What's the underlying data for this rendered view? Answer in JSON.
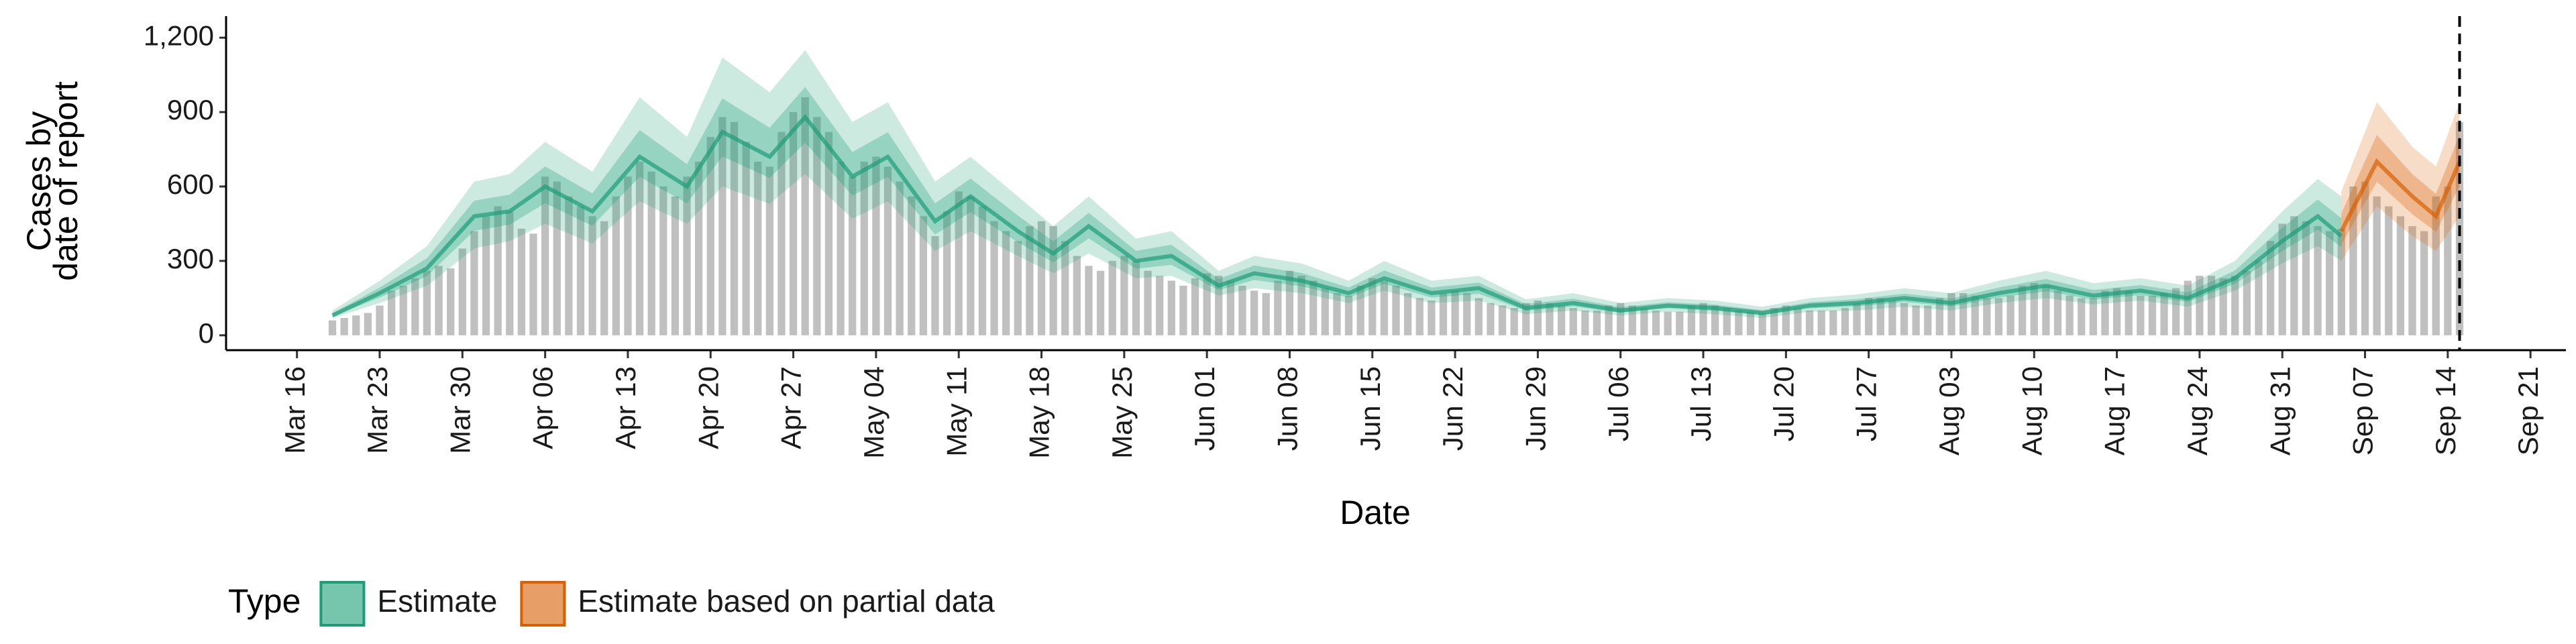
{
  "chart_data": {
    "type": "bar-ribbon",
    "y_label": [
      "Cases by",
      "date of report"
    ],
    "x_label": "Date",
    "legend_title": "Type",
    "legend_position": "bottom",
    "xlim": [
      "Mar 10",
      "Sep 24"
    ],
    "xticks": [
      "Mar 16",
      "Mar 23",
      "Mar 30",
      "Apr 06",
      "Apr 13",
      "Apr 20",
      "Apr 27",
      "May 04",
      "May 11",
      "May 18",
      "May 25",
      "Jun 01",
      "Jun 08",
      "Jun 15",
      "Jun 22",
      "Jun 29",
      "Jul 06",
      "Jul 13",
      "Jul 20",
      "Jul 27",
      "Aug 03",
      "Aug 10",
      "Aug 17",
      "Aug 24",
      "Aug 31",
      "Sep 07",
      "Sep 14",
      "Sep 21"
    ],
    "ylim": [
      -60,
      1260
    ],
    "yticks": [
      0,
      300,
      600,
      900,
      {
        "value": 1200,
        "label": "1,200"
      }
    ],
    "vline": "Sep 15",
    "bar_color": "#b5b5b5",
    "x": [
      "Mar 19",
      "Mar 20",
      "Mar 21",
      "Mar 22",
      "Mar 23",
      "Mar 24",
      "Mar 25",
      "Mar 26",
      "Mar 27",
      "Mar 28",
      "Mar 29",
      "Mar 30",
      "Mar 31",
      "Apr 01",
      "Apr 02",
      "Apr 03",
      "Apr 04",
      "Apr 05",
      "Apr 06",
      "Apr 07",
      "Apr 08",
      "Apr 09",
      "Apr 10",
      "Apr 11",
      "Apr 12",
      "Apr 13",
      "Apr 14",
      "Apr 15",
      "Apr 16",
      "Apr 17",
      "Apr 18",
      "Apr 19",
      "Apr 20",
      "Apr 21",
      "Apr 22",
      "Apr 23",
      "Apr 24",
      "Apr 25",
      "Apr 26",
      "Apr 27",
      "Apr 28",
      "Apr 29",
      "Apr 30",
      "May 01",
      "May 02",
      "May 03",
      "May 04",
      "May 05",
      "May 06",
      "May 07",
      "May 08",
      "May 09",
      "May 10",
      "May 11",
      "May 12",
      "May 13",
      "May 14",
      "May 15",
      "May 16",
      "May 17",
      "May 18",
      "May 19",
      "May 20",
      "May 21",
      "May 22",
      "May 23",
      "May 24",
      "May 25",
      "May 26",
      "May 27",
      "May 28",
      "May 29",
      "May 30",
      "May 31",
      "Jun 01",
      "Jun 02",
      "Jun 03",
      "Jun 04",
      "Jun 05",
      "Jun 06",
      "Jun 07",
      "Jun 08",
      "Jun 09",
      "Jun 10",
      "Jun 11",
      "Jun 12",
      "Jun 13",
      "Jun 14",
      "Jun 15",
      "Jun 16",
      "Jun 17",
      "Jun 18",
      "Jun 19",
      "Jun 20",
      "Jun 21",
      "Jun 22",
      "Jun 23",
      "Jun 24",
      "Jun 25",
      "Jun 26",
      "Jun 27",
      "Jun 28",
      "Jun 29",
      "Jun 30",
      "Jul 01",
      "Jul 02",
      "Jul 03",
      "Jul 04",
      "Jul 05",
      "Jul 06",
      "Jul 07",
      "Jul 08",
      "Jul 09",
      "Jul 10",
      "Jul 11",
      "Jul 12",
      "Jul 13",
      "Jul 14",
      "Jul 15",
      "Jul 16",
      "Jul 17",
      "Jul 18",
      "Jul 19",
      "Jul 20",
      "Jul 21",
      "Jul 22",
      "Jul 23",
      "Jul 24",
      "Jul 25",
      "Jul 26",
      "Jul 27",
      "Jul 28",
      "Jul 29",
      "Jul 30",
      "Jul 31",
      "Aug 01",
      "Aug 02",
      "Aug 03",
      "Aug 04",
      "Aug 05",
      "Aug 06",
      "Aug 07",
      "Aug 08",
      "Aug 09",
      "Aug 10",
      "Aug 11",
      "Aug 12",
      "Aug 13",
      "Aug 14",
      "Aug 15",
      "Aug 16",
      "Aug 17",
      "Aug 18",
      "Aug 19",
      "Aug 20",
      "Aug 21",
      "Aug 22",
      "Aug 23",
      "Aug 24",
      "Aug 25",
      "Aug 26",
      "Aug 27",
      "Aug 28",
      "Aug 29",
      "Aug 30",
      "Aug 31",
      "Sep 01",
      "Sep 02",
      "Sep 03",
      "Sep 04",
      "Sep 05",
      "Sep 06",
      "Sep 07",
      "Sep 08",
      "Sep 09",
      "Sep 10",
      "Sep 11",
      "Sep 12",
      "Sep 13",
      "Sep 14",
      "Sep 15"
    ],
    "values": [
      60,
      70,
      80,
      90,
      120,
      180,
      200,
      230,
      260,
      280,
      270,
      350,
      420,
      480,
      520,
      500,
      430,
      410,
      640,
      620,
      560,
      520,
      480,
      460,
      560,
      640,
      700,
      660,
      600,
      560,
      640,
      700,
      800,
      880,
      860,
      780,
      700,
      680,
      820,
      900,
      960,
      880,
      820,
      700,
      640,
      700,
      720,
      680,
      620,
      560,
      480,
      400,
      500,
      580,
      560,
      520,
      460,
      420,
      380,
      440,
      460,
      440,
      380,
      320,
      280,
      260,
      300,
      320,
      300,
      260,
      240,
      220,
      200,
      230,
      250,
      240,
      220,
      200,
      180,
      170,
      220,
      260,
      240,
      220,
      190,
      170,
      160,
      200,
      230,
      220,
      200,
      170,
      150,
      140,
      170,
      180,
      170,
      150,
      130,
      120,
      110,
      130,
      140,
      130,
      120,
      110,
      100,
      100,
      120,
      130,
      120,
      110,
      100,
      95,
      95,
      120,
      130,
      120,
      110,
      100,
      95,
      90,
      110,
      120,
      110,
      100,
      100,
      100,
      110,
      130,
      150,
      150,
      140,
      130,
      120,
      120,
      150,
      170,
      170,
      160,
      150,
      150,
      160,
      200,
      210,
      200,
      180,
      160,
      150,
      150,
      180,
      190,
      180,
      160,
      160,
      170,
      190,
      220,
      240,
      240,
      230,
      240,
      260,
      300,
      380,
      450,
      480,
      460,
      440,
      420,
      430,
      600,
      620,
      560,
      520,
      480,
      440,
      420,
      560,
      600,
      860
    ],
    "series": [
      {
        "name": "Estimate",
        "color": "#1b9e77",
        "x": [
          "Mar 19",
          "Mar 23",
          "Mar 27",
          "Mar 31",
          "Apr 03",
          "Apr 06",
          "Apr 10",
          "Apr 14",
          "Apr 18",
          "Apr 21",
          "Apr 25",
          "Apr 28",
          "May 02",
          "May 05",
          "May 09",
          "May 12",
          "May 16",
          "May 19",
          "May 22",
          "May 26",
          "May 29",
          "Jun 02",
          "Jun 05",
          "Jun 09",
          "Jun 13",
          "Jun 16",
          "Jun 20",
          "Jun 24",
          "Jun 28",
          "Jul 02",
          "Jul 06",
          "Jul 10",
          "Jul 14",
          "Jul 18",
          "Jul 22",
          "Jul 26",
          "Jul 30",
          "Aug 03",
          "Aug 07",
          "Aug 11",
          "Aug 15",
          "Aug 19",
          "Aug 23",
          "Aug 27",
          "Aug 31",
          "Sep 03",
          "Sep 05"
        ],
        "median": [
          80,
          170,
          270,
          480,
          500,
          600,
          500,
          720,
          600,
          820,
          720,
          880,
          640,
          720,
          460,
          560,
          420,
          330,
          440,
          300,
          320,
          200,
          250,
          220,
          170,
          230,
          170,
          190,
          110,
          130,
          100,
          120,
          110,
          90,
          120,
          130,
          150,
          130,
          170,
          200,
          160,
          180,
          150,
          230,
          380,
          480,
          400
        ],
        "lower": [
          70,
          130,
          200,
          350,
          380,
          450,
          370,
          540,
          450,
          600,
          530,
          650,
          470,
          540,
          340,
          420,
          320,
          250,
          330,
          230,
          240,
          160,
          190,
          170,
          130,
          180,
          130,
          140,
          85,
          100,
          80,
          95,
          85,
          70,
          95,
          100,
          115,
          100,
          130,
          150,
          125,
          140,
          115,
          180,
          290,
          360,
          300
        ],
        "upper": [
          100,
          220,
          360,
          620,
          650,
          780,
          660,
          960,
          800,
          1120,
          980,
          1150,
          860,
          940,
          620,
          720,
          560,
          440,
          560,
          390,
          420,
          260,
          320,
          290,
          220,
          300,
          220,
          240,
          145,
          170,
          130,
          150,
          140,
          115,
          150,
          165,
          190,
          170,
          220,
          260,
          210,
          230,
          200,
          300,
          500,
          630,
          560
        ]
      },
      {
        "name": "Estimate based on partial data",
        "color": "#d95f02",
        "x": [
          "Sep 05",
          "Sep 08",
          "Sep 11",
          "Sep 13",
          "Sep 15"
        ],
        "median": [
          420,
          700,
          560,
          480,
          700
        ],
        "lower": [
          300,
          520,
          400,
          340,
          480
        ],
        "upper": [
          580,
          940,
          760,
          680,
          940
        ]
      }
    ]
  }
}
